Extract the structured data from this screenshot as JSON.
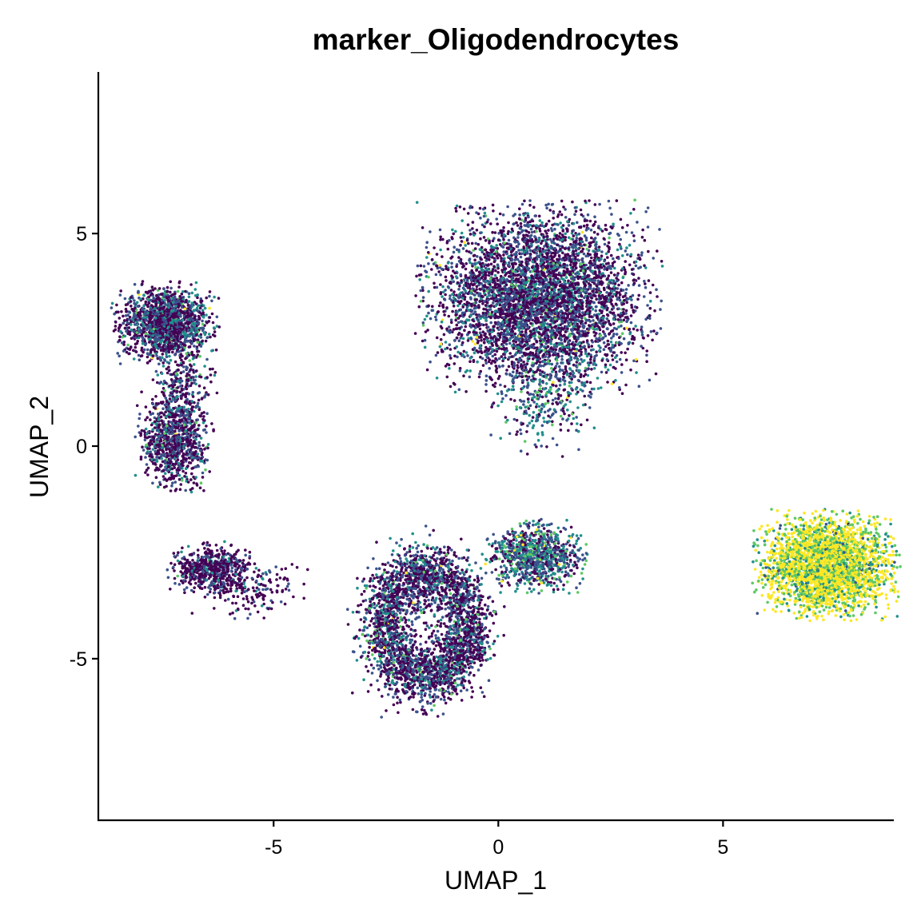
{
  "chart_data": {
    "type": "scatter",
    "title": "marker_Oligodendrocytes",
    "xlabel": "UMAP_1",
    "ylabel": "UMAP_2",
    "xlim": [
      -8.9,
      8.8
    ],
    "ylim": [
      -8.8,
      8.8
    ],
    "xticks": [
      -5,
      0,
      5
    ],
    "yticks": [
      -5,
      0,
      5
    ],
    "grid": false,
    "legend": "none",
    "color_scale": "viridis",
    "palette": [
      "#440154",
      "#3B528B",
      "#21908C",
      "#5DC863",
      "#FDE725"
    ],
    "point_count_estimate": 16000,
    "clusters": [
      {
        "id": "upper-left-top",
        "center": [
          -7.4,
          2.9
        ],
        "spread": [
          0.55,
          0.45
        ],
        "n": 1500,
        "mean_expression": 0.2
      },
      {
        "id": "left-bridge",
        "center": [
          -7.0,
          1.4
        ],
        "spread": [
          0.35,
          0.5
        ],
        "n": 250,
        "mean_expression": 0.15
      },
      {
        "id": "left-middle",
        "center": [
          -7.2,
          0.1
        ],
        "spread": [
          0.4,
          0.55
        ],
        "n": 900,
        "mean_expression": 0.15
      },
      {
        "id": "left-lower",
        "center": [
          -6.4,
          -2.9
        ],
        "spread": [
          0.45,
          0.3
        ],
        "n": 550,
        "mean_expression": 0.1
      },
      {
        "id": "left-lower-tail",
        "center": [
          -5.5,
          -3.3
        ],
        "spread": [
          0.6,
          0.35
        ],
        "n": 180,
        "mean_expression": 0.1
      },
      {
        "id": "upper-center",
        "center": [
          0.9,
          3.5
        ],
        "spread": [
          1.25,
          1.05
        ],
        "n": 4500,
        "mean_expression": 0.2
      },
      {
        "id": "upper-center-tail",
        "center": [
          1.0,
          1.2
        ],
        "spread": [
          0.6,
          0.7
        ],
        "n": 350,
        "mean_expression": 0.3
      },
      {
        "id": "lower-center-ring",
        "center": [
          -1.6,
          -4.2
        ],
        "spread": [
          1.3,
          1.6
        ],
        "n": 3000,
        "mean_expression": 0.2
      },
      {
        "id": "lower-right-small",
        "center": [
          0.8,
          -2.6
        ],
        "spread": [
          0.55,
          0.4
        ],
        "n": 900,
        "mean_expression": 0.35
      },
      {
        "id": "right-oligodendrocytes",
        "center": [
          7.3,
          -2.8
        ],
        "spread": [
          0.75,
          0.6
        ],
        "n": 3000,
        "mean_expression": 0.85
      }
    ]
  }
}
